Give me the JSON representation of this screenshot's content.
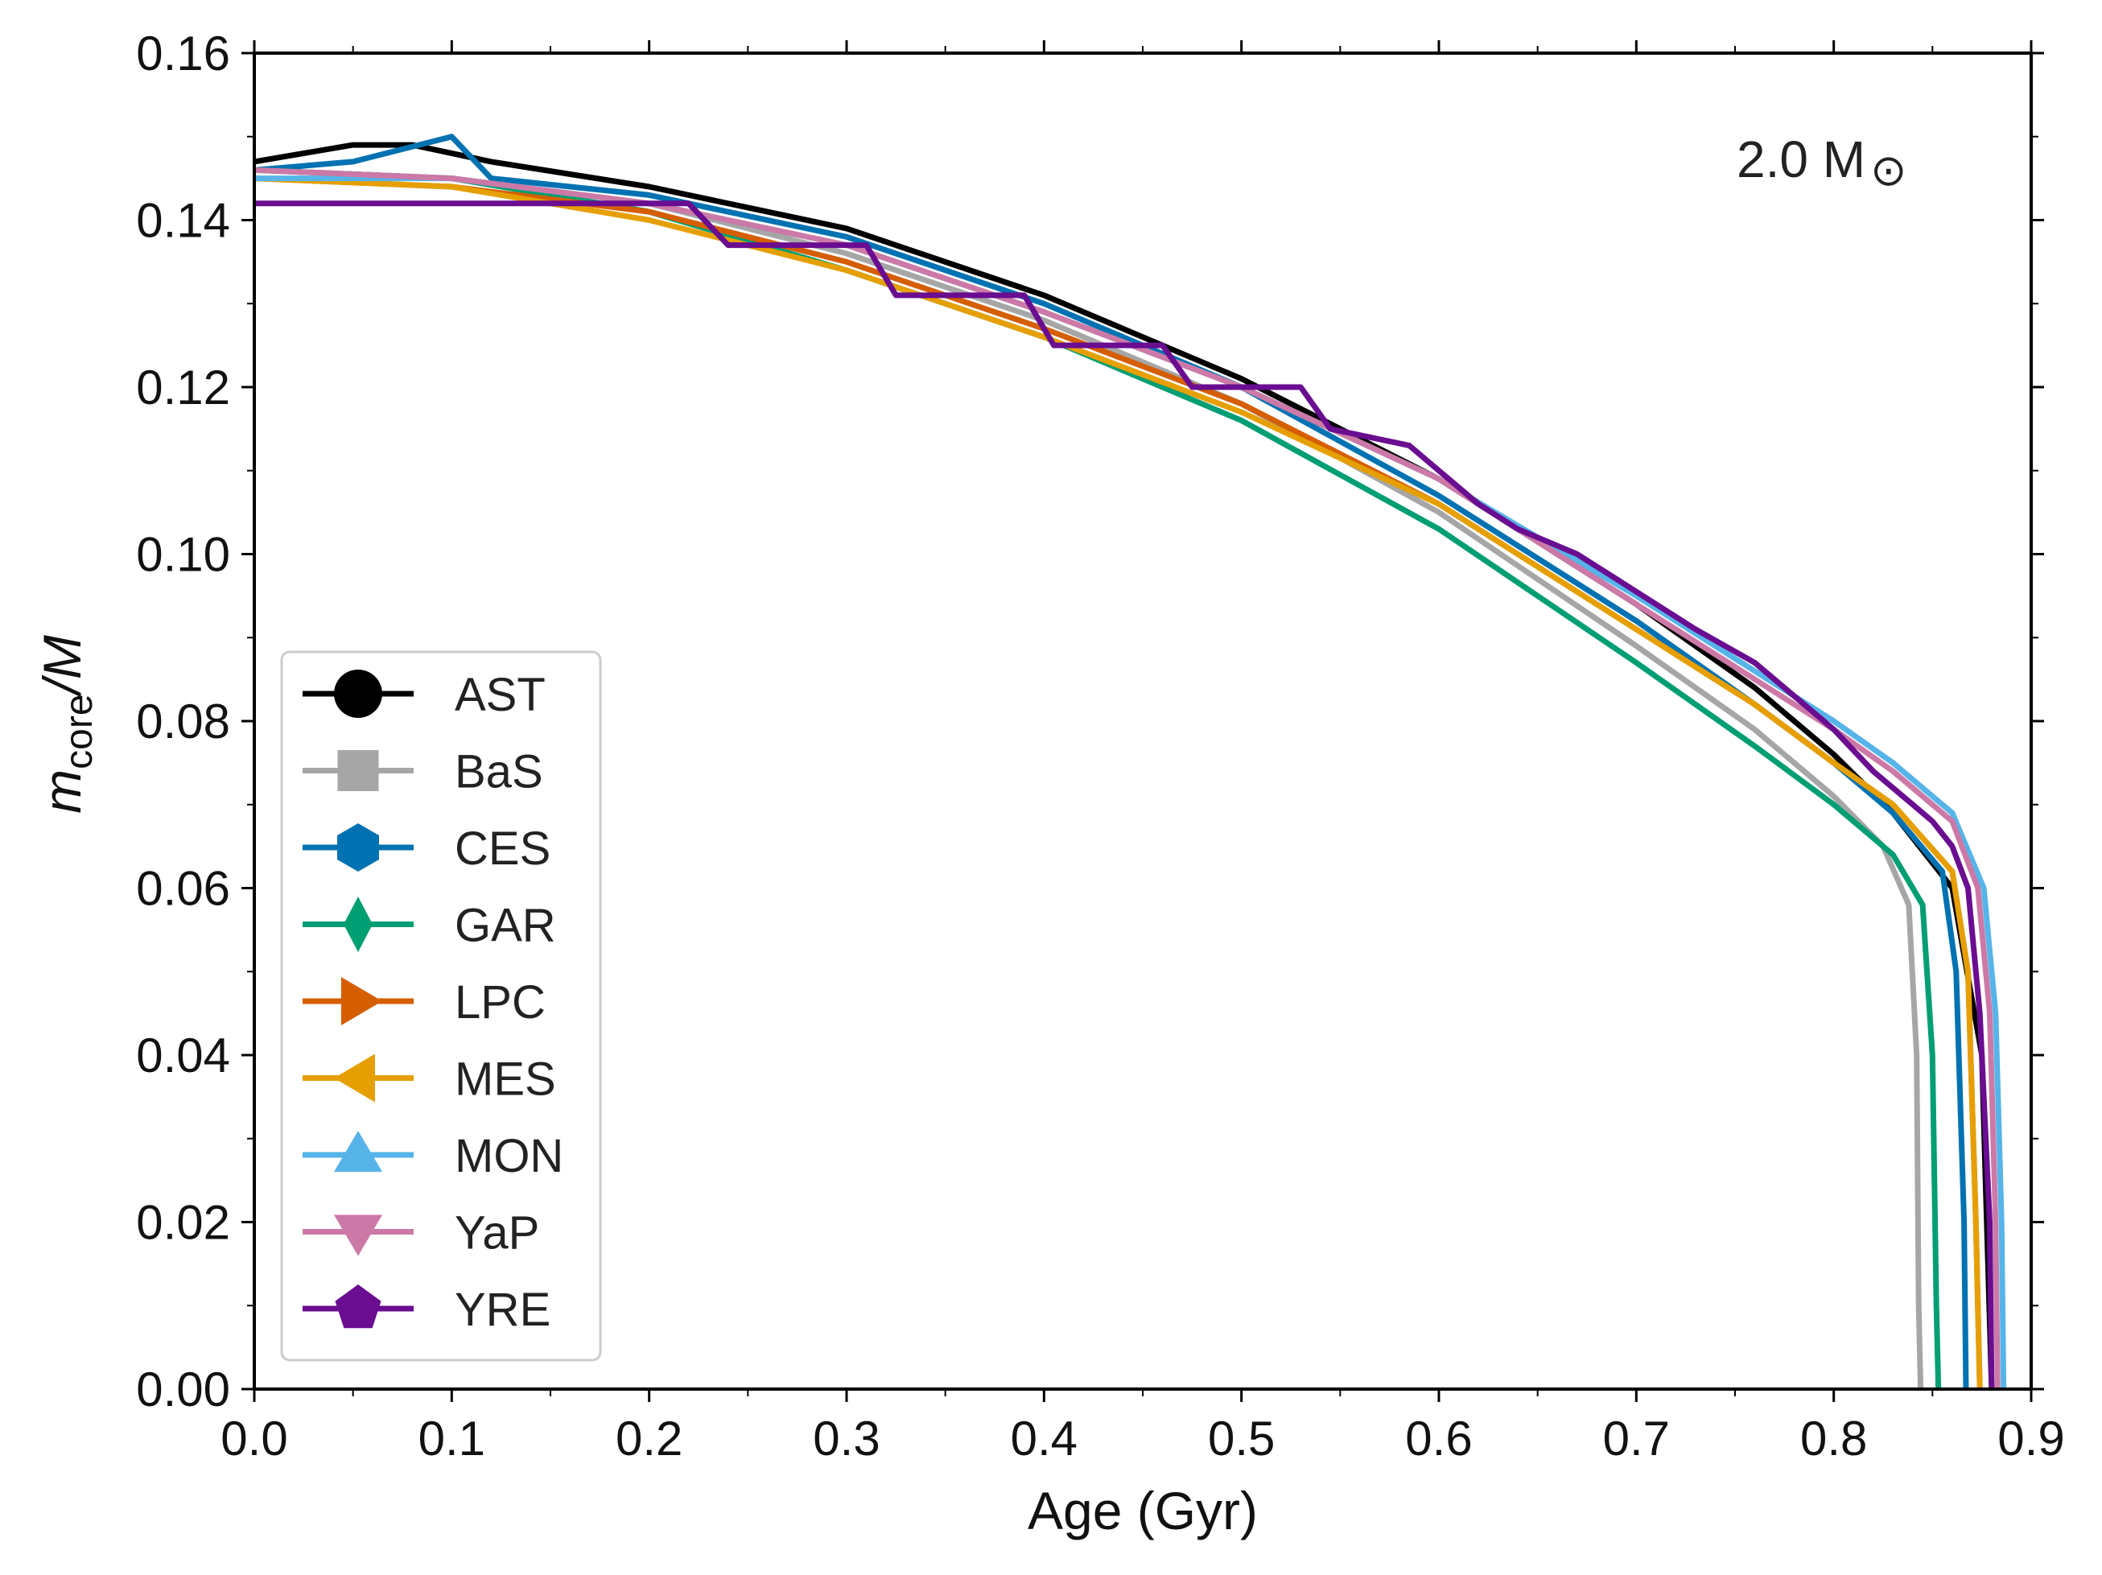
{
  "chart_data": {
    "type": "line",
    "title": "",
    "xlabel": "Age (Gyr)",
    "ylabel": "m_core/M",
    "ylabel_parts": {
      "m": "m",
      "sub": "core",
      "rest": "/M"
    },
    "xlim": [
      0.0,
      0.9
    ],
    "ylim": [
      0.0,
      0.16
    ],
    "x_ticks": [
      "0.0",
      "0.1",
      "0.2",
      "0.3",
      "0.4",
      "0.5",
      "0.6",
      "0.7",
      "0.8",
      "0.9"
    ],
    "y_ticks": [
      "0.00",
      "0.02",
      "0.04",
      "0.06",
      "0.08",
      "0.10",
      "0.12",
      "0.14",
      "0.16"
    ],
    "grid": false,
    "legend_position": "center-left",
    "annotation": {
      "mass": "2.0 M",
      "sun_symbol": "⊙"
    },
    "series": [
      {
        "name": "AST",
        "color": "#000000",
        "marker": "circle",
        "x": [
          0.0,
          0.05,
          0.08,
          0.12,
          0.2,
          0.3,
          0.4,
          0.5,
          0.6,
          0.7,
          0.76,
          0.8,
          0.83,
          0.86,
          0.875,
          0.88
        ],
        "y": [
          0.147,
          0.149,
          0.149,
          0.147,
          0.144,
          0.139,
          0.131,
          0.121,
          0.109,
          0.094,
          0.084,
          0.076,
          0.069,
          0.06,
          0.04,
          0.0
        ]
      },
      {
        "name": "BaS",
        "color": "#a6a6a6",
        "marker": "square",
        "x": [
          0.0,
          0.1,
          0.2,
          0.3,
          0.4,
          0.5,
          0.6,
          0.7,
          0.76,
          0.8,
          0.825,
          0.838,
          0.842,
          0.843,
          0.844
        ],
        "y": [
          0.146,
          0.145,
          0.142,
          0.136,
          0.128,
          0.118,
          0.105,
          0.089,
          0.079,
          0.071,
          0.065,
          0.058,
          0.04,
          0.01,
          0.0
        ]
      },
      {
        "name": "CES",
        "color": "#0072b2",
        "marker": "hexagon",
        "x": [
          0.0,
          0.05,
          0.1,
          0.12,
          0.2,
          0.3,
          0.4,
          0.5,
          0.6,
          0.7,
          0.76,
          0.8,
          0.83,
          0.855,
          0.862,
          0.866,
          0.867
        ],
        "y": [
          0.146,
          0.147,
          0.15,
          0.145,
          0.143,
          0.138,
          0.13,
          0.12,
          0.107,
          0.092,
          0.082,
          0.075,
          0.069,
          0.062,
          0.05,
          0.02,
          0.0
        ]
      },
      {
        "name": "GAR",
        "color": "#009e73",
        "marker": "diamond",
        "x": [
          0.0,
          0.1,
          0.2,
          0.3,
          0.4,
          0.5,
          0.6,
          0.7,
          0.76,
          0.8,
          0.83,
          0.845,
          0.85,
          0.852,
          0.853
        ],
        "y": [
          0.146,
          0.145,
          0.141,
          0.134,
          0.126,
          0.116,
          0.103,
          0.087,
          0.077,
          0.07,
          0.064,
          0.058,
          0.04,
          0.01,
          0.0
        ]
      },
      {
        "name": "LPC",
        "color": "#d55e00",
        "marker": "triangle-right",
        "x": [
          0.0,
          0.1,
          0.2,
          0.3,
          0.4,
          0.5,
          0.6,
          0.7,
          0.76,
          0.8,
          0.83,
          0.86,
          0.868,
          0.872,
          0.874
        ],
        "y": [
          0.145,
          0.144,
          0.141,
          0.135,
          0.127,
          0.118,
          0.106,
          0.091,
          0.082,
          0.075,
          0.07,
          0.062,
          0.05,
          0.02,
          0.0
        ]
      },
      {
        "name": "MES",
        "color": "#e69f00",
        "marker": "triangle-left",
        "x": [
          0.0,
          0.1,
          0.2,
          0.3,
          0.4,
          0.5,
          0.6,
          0.7,
          0.76,
          0.8,
          0.83,
          0.86,
          0.868,
          0.872,
          0.874
        ],
        "y": [
          0.145,
          0.144,
          0.14,
          0.134,
          0.126,
          0.117,
          0.106,
          0.091,
          0.082,
          0.075,
          0.07,
          0.062,
          0.05,
          0.02,
          0.0
        ]
      },
      {
        "name": "MON",
        "color": "#56b4e9",
        "marker": "triangle-up",
        "x": [
          0.0,
          0.1,
          0.2,
          0.3,
          0.4,
          0.5,
          0.6,
          0.7,
          0.76,
          0.8,
          0.83,
          0.86,
          0.876,
          0.882,
          0.885,
          0.886
        ],
        "y": [
          0.145,
          0.145,
          0.142,
          0.137,
          0.129,
          0.12,
          0.109,
          0.095,
          0.086,
          0.08,
          0.075,
          0.069,
          0.06,
          0.045,
          0.02,
          0.0
        ]
      },
      {
        "name": "YaP",
        "color": "#cc79a7",
        "marker": "triangle-down",
        "x": [
          0.0,
          0.1,
          0.2,
          0.3,
          0.4,
          0.5,
          0.6,
          0.7,
          0.76,
          0.8,
          0.83,
          0.86,
          0.873,
          0.879,
          0.882,
          0.883
        ],
        "y": [
          0.146,
          0.145,
          0.142,
          0.137,
          0.129,
          0.12,
          0.109,
          0.094,
          0.085,
          0.079,
          0.074,
          0.068,
          0.06,
          0.045,
          0.02,
          0.0
        ]
      },
      {
        "name": "YRE",
        "color": "#6a0d91",
        "marker": "pentagon",
        "x": [
          0.0,
          0.22,
          0.24,
          0.31,
          0.325,
          0.39,
          0.405,
          0.46,
          0.475,
          0.53,
          0.545,
          0.585,
          0.6,
          0.62,
          0.64,
          0.67,
          0.69,
          0.71,
          0.73,
          0.76,
          0.78,
          0.8,
          0.82,
          0.84,
          0.85,
          0.86,
          0.868,
          0.874,
          0.879,
          0.88
        ],
        "y": [
          0.142,
          0.142,
          0.137,
          0.137,
          0.131,
          0.131,
          0.125,
          0.125,
          0.12,
          0.12,
          0.115,
          0.113,
          0.11,
          0.106,
          0.103,
          0.1,
          0.097,
          0.094,
          0.091,
          0.087,
          0.083,
          0.079,
          0.074,
          0.07,
          0.068,
          0.065,
          0.06,
          0.045,
          0.02,
          0.0
        ]
      }
    ]
  }
}
